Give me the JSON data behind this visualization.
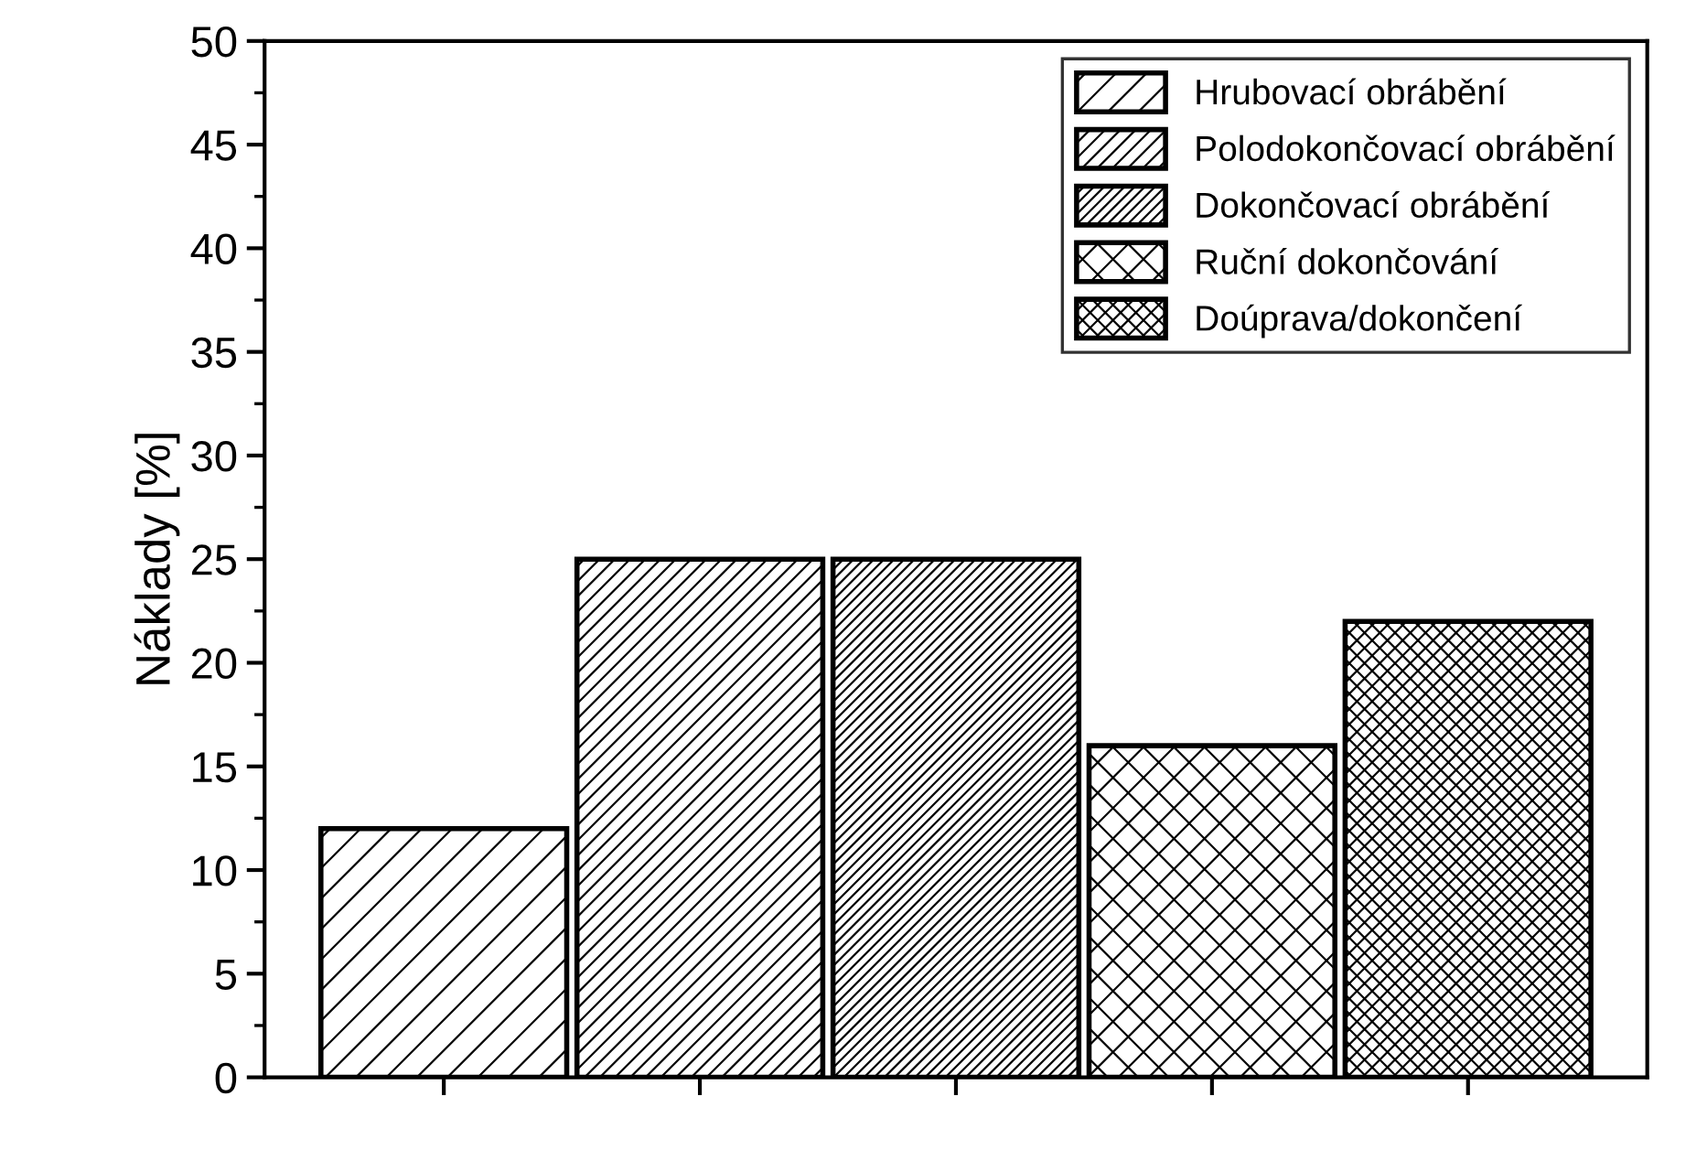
{
  "chart_data": {
    "type": "bar",
    "ylabel": "Náklady [%]",
    "categories": [
      null,
      null,
      null,
      null,
      null
    ],
    "series": [
      {
        "name": "Hrubovací obrábění",
        "color": "#000000",
        "values": [
          12,
          null,
          null,
          null,
          null
        ]
      },
      {
        "name": "Polodokončovací obrábění",
        "color": "#000000",
        "values": [
          null,
          25,
          null,
          null,
          null
        ]
      },
      {
        "name": "Dokončovací obrábění",
        "color": "#000000",
        "values": [
          null,
          null,
          25,
          null,
          null
        ]
      },
      {
        "name": "Ruční dokončování",
        "color": "#000000",
        "values": [
          null,
          null,
          null,
          16,
          null
        ]
      },
      {
        "name": "Doúprava/dokončení",
        "color": "#000000",
        "values": [
          null,
          null,
          null,
          null,
          22
        ]
      }
    ],
    "ylim": [
      0,
      50
    ],
    "yticks": [
      0,
      5,
      10,
      15,
      20,
      25,
      30,
      35,
      40,
      45,
      50
    ],
    "tick_labels": "y",
    "grid": false,
    "legend": "top right"
  }
}
